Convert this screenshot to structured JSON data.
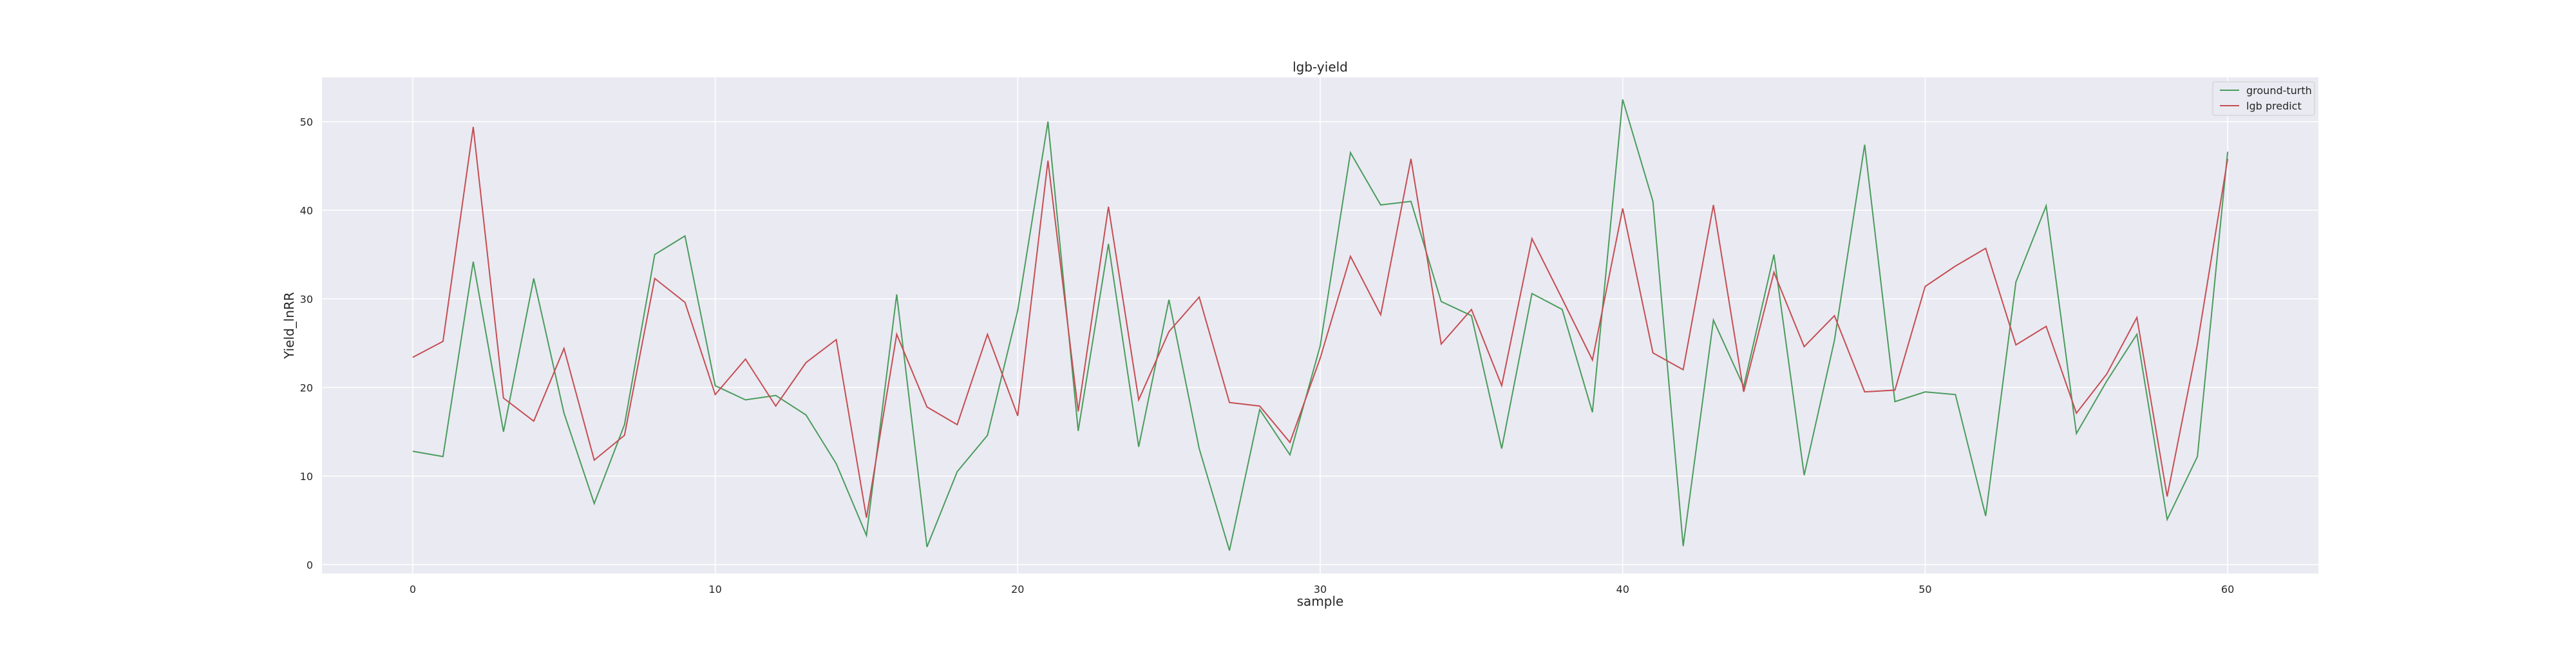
{
  "chart_data": {
    "type": "line",
    "title": "lgb-yield",
    "xlabel": "sample",
    "ylabel": "Yield_lnRR",
    "xlim": [
      -3,
      63
    ],
    "ylim": [
      -1,
      55
    ],
    "xticks": [
      0,
      10,
      20,
      30,
      40,
      50,
      60
    ],
    "yticks": [
      0,
      10,
      20,
      30,
      40,
      50
    ],
    "grid": true,
    "legend_position": "top-right",
    "x": [
      0,
      1,
      2,
      3,
      4,
      5,
      6,
      7,
      8,
      9,
      10,
      11,
      12,
      13,
      14,
      15,
      16,
      17,
      18,
      19,
      20,
      21,
      22,
      23,
      24,
      25,
      26,
      27,
      28,
      29,
      30,
      31,
      32,
      33,
      34,
      35,
      36,
      37,
      38,
      39,
      40,
      41,
      42,
      43,
      44,
      45,
      46,
      47,
      48,
      49,
      50,
      51,
      52,
      53,
      54,
      55,
      56,
      57,
      58,
      59,
      60
    ],
    "series": [
      {
        "name": "ground-turth",
        "color": "#4a9c5d",
        "values": [
          12.8,
          12.2,
          34.2,
          15.0,
          32.3,
          17.1,
          6.9,
          15.8,
          35.0,
          37.1,
          20.2,
          18.6,
          19.1,
          16.9,
          11.4,
          3.3,
          30.5,
          2.0,
          10.5,
          14.6,
          28.7,
          50.0,
          15.1,
          36.2,
          13.3,
          29.9,
          13.1,
          1.6,
          17.5,
          12.4,
          24.7,
          46.5,
          40.6,
          41.0,
          29.7,
          28.1,
          13.1,
          30.6,
          28.8,
          17.2,
          52.5,
          41.0,
          2.1,
          27.6,
          20.1,
          35.0,
          10.1,
          25.3,
          47.4,
          18.4,
          19.5,
          19.2,
          5.5,
          31.9,
          40.5,
          14.8,
          20.7,
          26.0,
          5.1,
          12.2,
          46.6
        ]
      },
      {
        "name": "lgb predict",
        "color": "#c44e52",
        "values": [
          23.4,
          25.2,
          49.4,
          18.8,
          16.2,
          24.4,
          11.8,
          14.6,
          32.3,
          29.6,
          19.2,
          23.2,
          17.9,
          22.8,
          25.4,
          5.3,
          26.0,
          17.8,
          15.8,
          26.0,
          16.8,
          45.6,
          17.3,
          40.4,
          18.6,
          26.3,
          30.2,
          18.3,
          17.9,
          13.8,
          23.3,
          34.8,
          28.2,
          45.8,
          24.9,
          28.8,
          20.2,
          36.8,
          30.0,
          23.1,
          40.2,
          23.9,
          22.0,
          40.6,
          19.5,
          33.0,
          24.6,
          28.1,
          19.5,
          19.7,
          31.4,
          33.7,
          35.7,
          24.8,
          26.9,
          17.1,
          21.5,
          27.9,
          7.7,
          24.9,
          45.8
        ]
      }
    ]
  }
}
